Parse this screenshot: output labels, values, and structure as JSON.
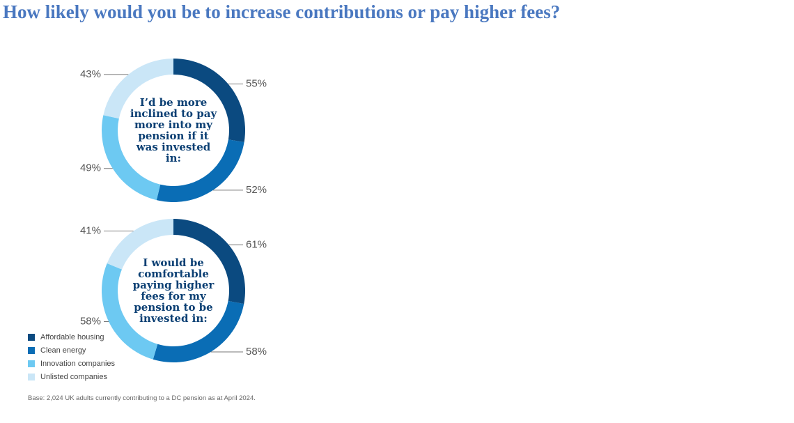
{
  "title": "How likely would you be to increase contributions or pay higher fees?",
  "chart_data": {
    "type": "donut",
    "center_labels": [
      "I’d be more inclined to pay more into my pension if it was invested in:",
      "I would be comfortable paying higher fees for my pension to be invested in:"
    ],
    "series": [
      {
        "name": "Affordable housing",
        "color": "#0b4a80",
        "values": [
          55,
          61
        ],
        "value_labels": [
          "55%",
          "61%"
        ]
      },
      {
        "name": "Clean energy",
        "color": "#0a6db5",
        "values": [
          52,
          58
        ],
        "value_labels": [
          "52%",
          "58%"
        ]
      },
      {
        "name": "Innovation companies",
        "color": "#6dc9f2",
        "values": [
          49,
          58
        ],
        "value_labels": [
          "49%",
          "58%"
        ]
      },
      {
        "name": "Unlisted companies",
        "color": "#cae6f7",
        "values": [
          43,
          41
        ],
        "value_labels": [
          "43%",
          "41%"
        ]
      }
    ]
  },
  "note": "Base: 2,024 UK adults currently contributing to a DC pension as at April 2024."
}
